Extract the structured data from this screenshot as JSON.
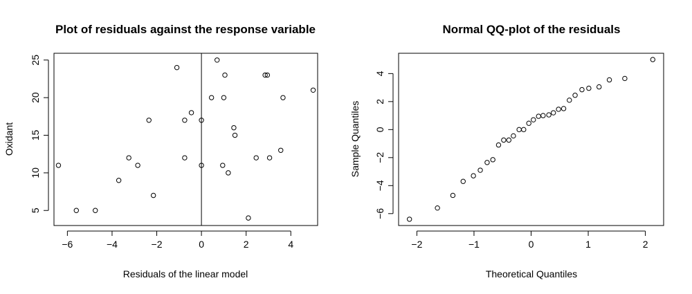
{
  "chart_data": [
    {
      "type": "scatter",
      "title": "Plot of residuals against the response variable",
      "xlabel": "Residuals of the linear model",
      "ylabel": "Oxidant",
      "xlim": [
        -6.6,
        5.2
      ],
      "ylim": [
        3.0,
        25.9
      ],
      "xticks": [
        -6,
        -4,
        -2,
        0,
        2,
        4
      ],
      "yticks": [
        5,
        10,
        15,
        20,
        25
      ],
      "grid": false,
      "vline_x": 0,
      "points": [
        {
          "x": -6.4,
          "y": 11
        },
        {
          "x": -5.6,
          "y": 5
        },
        {
          "x": -4.75,
          "y": 5
        },
        {
          "x": -3.7,
          "y": 9
        },
        {
          "x": -3.25,
          "y": 12
        },
        {
          "x": -2.85,
          "y": 11
        },
        {
          "x": -2.35,
          "y": 17
        },
        {
          "x": -2.15,
          "y": 7
        },
        {
          "x": -1.1,
          "y": 24
        },
        {
          "x": -0.75,
          "y": 12
        },
        {
          "x": -0.75,
          "y": 17
        },
        {
          "x": -0.45,
          "y": 18
        },
        {
          "x": 0.0,
          "y": 11
        },
        {
          "x": 0.0,
          "y": 17
        },
        {
          "x": 0.45,
          "y": 20
        },
        {
          "x": 0.7,
          "y": 25
        },
        {
          "x": 0.95,
          "y": 11
        },
        {
          "x": 1.0,
          "y": 20
        },
        {
          "x": 1.05,
          "y": 23
        },
        {
          "x": 1.2,
          "y": 10
        },
        {
          "x": 1.45,
          "y": 16
        },
        {
          "x": 1.5,
          "y": 15
        },
        {
          "x": 2.1,
          "y": 4
        },
        {
          "x": 2.45,
          "y": 12
        },
        {
          "x": 2.85,
          "y": 23
        },
        {
          "x": 2.95,
          "y": 23
        },
        {
          "x": 3.05,
          "y": 12
        },
        {
          "x": 3.55,
          "y": 13
        },
        {
          "x": 3.65,
          "y": 20
        },
        {
          "x": 5.0,
          "y": 21
        }
      ]
    },
    {
      "type": "scatter",
      "title": "Normal QQ-plot of the residuals",
      "xlabel": "Theoretical Quantiles",
      "ylabel": "Sample Quantiles",
      "xlim": [
        -2.32,
        2.32
      ],
      "ylim": [
        -6.85,
        5.45
      ],
      "xticks": [
        -2,
        -1,
        0,
        1,
        2
      ],
      "yticks": [
        -6,
        -4,
        -2,
        0,
        2,
        4
      ],
      "grid": false,
      "points": [
        {
          "x": -2.13,
          "y": -6.4
        },
        {
          "x": -1.64,
          "y": -5.6
        },
        {
          "x": -1.37,
          "y": -4.7
        },
        {
          "x": -1.19,
          "y": -3.7
        },
        {
          "x": -1.01,
          "y": -3.3
        },
        {
          "x": -0.89,
          "y": -2.9
        },
        {
          "x": -0.77,
          "y": -2.35
        },
        {
          "x": -0.67,
          "y": -2.15
        },
        {
          "x": -0.57,
          "y": -1.1
        },
        {
          "x": -0.48,
          "y": -0.75
        },
        {
          "x": -0.39,
          "y": -0.75
        },
        {
          "x": -0.31,
          "y": -0.45
        },
        {
          "x": -0.21,
          "y": 0.0
        },
        {
          "x": -0.13,
          "y": 0.0
        },
        {
          "x": -0.04,
          "y": 0.45
        },
        {
          "x": 0.04,
          "y": 0.7
        },
        {
          "x": 0.13,
          "y": 0.95
        },
        {
          "x": 0.21,
          "y": 1.0
        },
        {
          "x": 0.31,
          "y": 1.05
        },
        {
          "x": 0.39,
          "y": 1.2
        },
        {
          "x": 0.48,
          "y": 1.45
        },
        {
          "x": 0.57,
          "y": 1.5
        },
        {
          "x": 0.67,
          "y": 2.1
        },
        {
          "x": 0.77,
          "y": 2.45
        },
        {
          "x": 0.89,
          "y": 2.85
        },
        {
          "x": 1.01,
          "y": 2.95
        },
        {
          "x": 1.19,
          "y": 3.05
        },
        {
          "x": 1.37,
          "y": 3.55
        },
        {
          "x": 1.64,
          "y": 3.65
        },
        {
          "x": 2.13,
          "y": 5.0
        }
      ]
    }
  ]
}
